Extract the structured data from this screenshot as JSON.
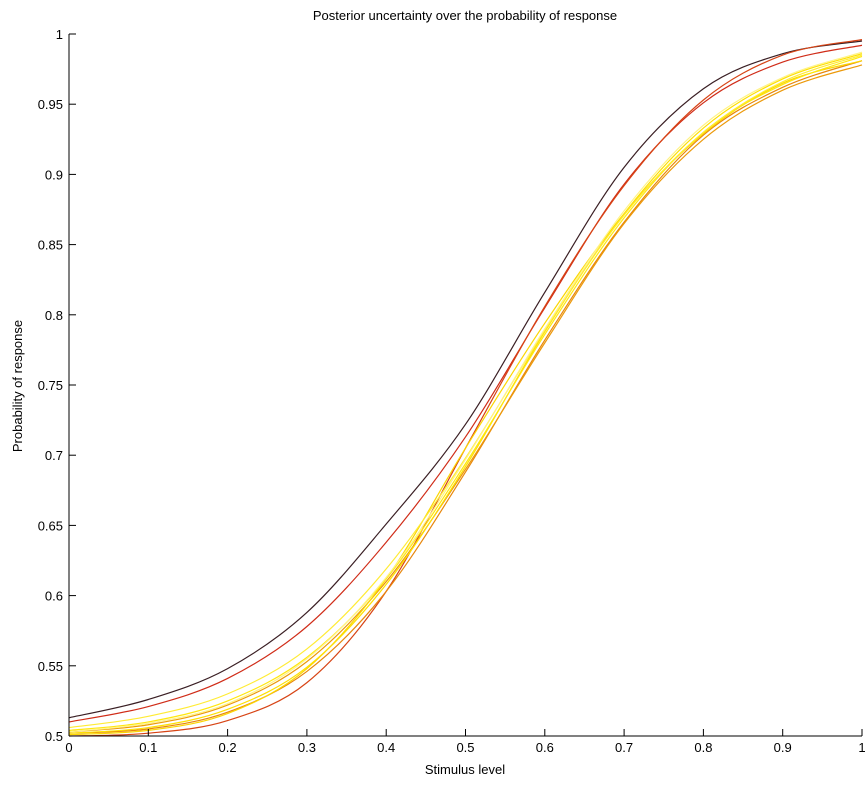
{
  "chart_data": {
    "type": "line",
    "title": "Posterior uncertainty over the probability of response",
    "xlabel": "Stimulus level",
    "ylabel": "Probability of response",
    "xlim": [
      0,
      1
    ],
    "ylim": [
      0.5,
      1
    ],
    "xticks": [
      0,
      0.1,
      0.2,
      0.3,
      0.4,
      0.5,
      0.6,
      0.7,
      0.8,
      0.9,
      1
    ],
    "xtick_labels": [
      "0",
      "0.1",
      "0.2",
      "0.3",
      "0.4",
      "0.5",
      "0.6",
      "0.7",
      "0.8",
      "0.9",
      "1"
    ],
    "yticks": [
      0.5,
      0.55,
      0.6,
      0.65,
      0.7,
      0.75,
      0.8,
      0.85,
      0.9,
      0.95,
      1
    ],
    "ytick_labels": [
      "0.5",
      "0.55",
      "0.6",
      "0.65",
      "0.7",
      "0.75",
      "0.8",
      "0.85",
      "0.9",
      "0.95",
      "1"
    ],
    "grid": false,
    "legend": "none",
    "colors": {
      "outer": "#3a1f24",
      "mid": "#cc1a1a",
      "inner": "#ffe600",
      "center": "#ffffff"
    },
    "x": [
      0,
      0.1,
      0.2,
      0.3,
      0.4,
      0.5,
      0.6,
      0.7,
      0.8,
      0.9,
      1
    ],
    "series": [
      {
        "values": [
          0.513,
          0.526,
          0.548,
          0.588,
          0.651,
          0.722,
          0.816,
          0.905,
          0.961,
          0.986,
          0.995
        ]
      },
      {
        "values": [
          0.5,
          0.502,
          0.511,
          0.538,
          0.603,
          0.705,
          0.806,
          0.892,
          0.953,
          0.985,
          0.996
        ]
      },
      {
        "values": [
          0.51,
          0.521,
          0.541,
          0.578,
          0.638,
          0.713,
          0.805,
          0.893,
          0.951,
          0.98,
          0.992
        ]
      },
      {
        "values": [
          0.501,
          0.504,
          0.516,
          0.548,
          0.612,
          0.705,
          0.794,
          0.872,
          0.929,
          0.965,
          0.981
        ]
      },
      {
        "values": [
          0.506,
          0.514,
          0.53,
          0.562,
          0.619,
          0.698,
          0.789,
          0.871,
          0.93,
          0.966,
          0.985
        ]
      },
      {
        "values": [
          0.503,
          0.508,
          0.522,
          0.553,
          0.61,
          0.69,
          0.78,
          0.865,
          0.925,
          0.96,
          0.978
        ]
      },
      {
        "values": [
          0.502,
          0.506,
          0.519,
          0.549,
          0.608,
          0.692,
          0.788,
          0.872,
          0.933,
          0.968,
          0.986
        ]
      },
      {
        "values": [
          0.504,
          0.51,
          0.525,
          0.556,
          0.612,
          0.694,
          0.786,
          0.869,
          0.93,
          0.964,
          0.984
        ]
      },
      {
        "values": [
          0.502,
          0.505,
          0.517,
          0.546,
          0.603,
          0.688,
          0.782,
          0.866,
          0.928,
          0.962,
          0.981
        ]
      },
      {
        "values": [
          0.503,
          0.509,
          0.523,
          0.555,
          0.613,
          0.697,
          0.79,
          0.874,
          0.935,
          0.969,
          0.987
        ]
      }
    ]
  }
}
